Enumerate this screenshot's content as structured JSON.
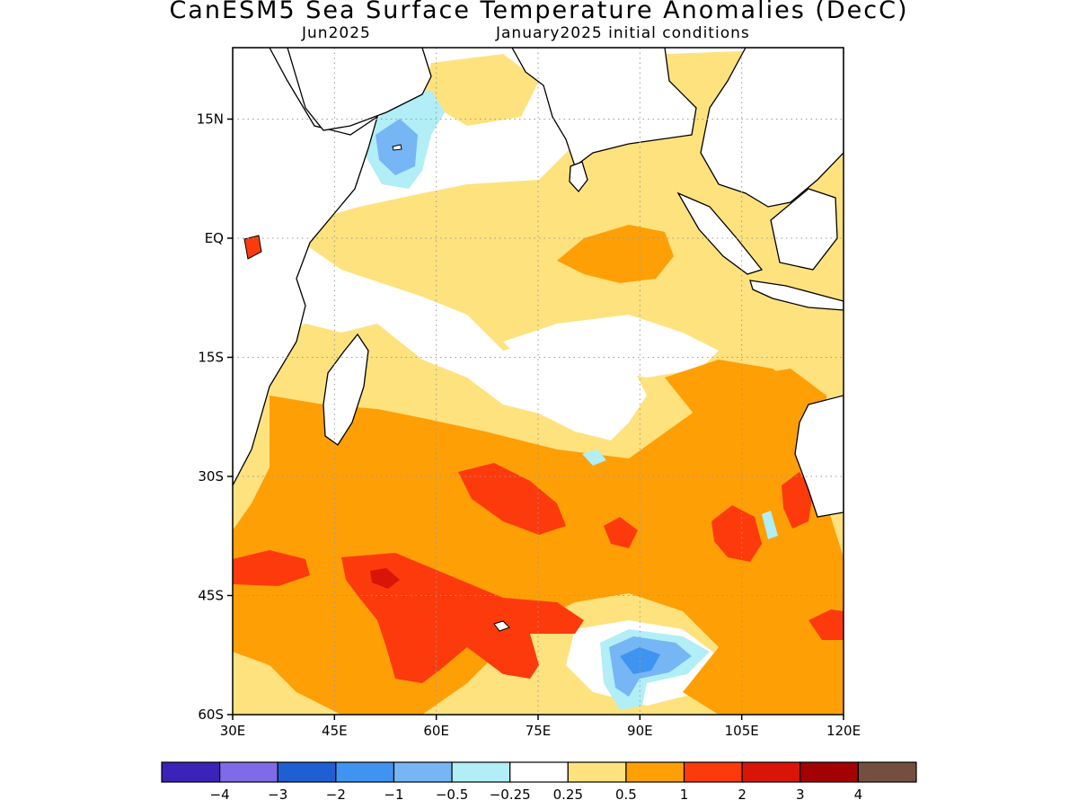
{
  "title": "CanESM5 Sea Surface Temperature Anomalies (DecC)",
  "subtitle_left": "Jun2025",
  "subtitle_right": "January2025 initial conditions",
  "map": {
    "lon_range": [
      30,
      120
    ],
    "lat_range": [
      -60,
      24
    ],
    "lon_ticks": [
      "30E",
      "45E",
      "60E",
      "75E",
      "90E",
      "105E",
      "120E"
    ],
    "lat_ticks": [
      "15N",
      "EQ",
      "15S",
      "30S",
      "45S",
      "60S"
    ],
    "grid": "dotted"
  },
  "legend": {
    "colors": [
      "#3b22b8",
      "#7f6be8",
      "#1f5fd4",
      "#3f94f2",
      "#76b6f5",
      "#b1eef6",
      "#ffffff",
      "#fee27e",
      "#fe9f06",
      "#fd3a0b",
      "#d91508",
      "#a40202",
      "#744f40"
    ],
    "labels": [
      "−4",
      "−3",
      "−2",
      "−1",
      "−0.5",
      "−0.25",
      "0.25",
      "0.5",
      "1",
      "2",
      "3",
      "4"
    ]
  },
  "anomaly_palette": {
    "weak_warm": "#fee27e",
    "warm": "#fe9f06",
    "hot": "#fd3a0b",
    "very_hot": "#d91508",
    "cool": "#b1eef6",
    "cold": "#76b6f5",
    "colder": "#3f94f2"
  }
}
